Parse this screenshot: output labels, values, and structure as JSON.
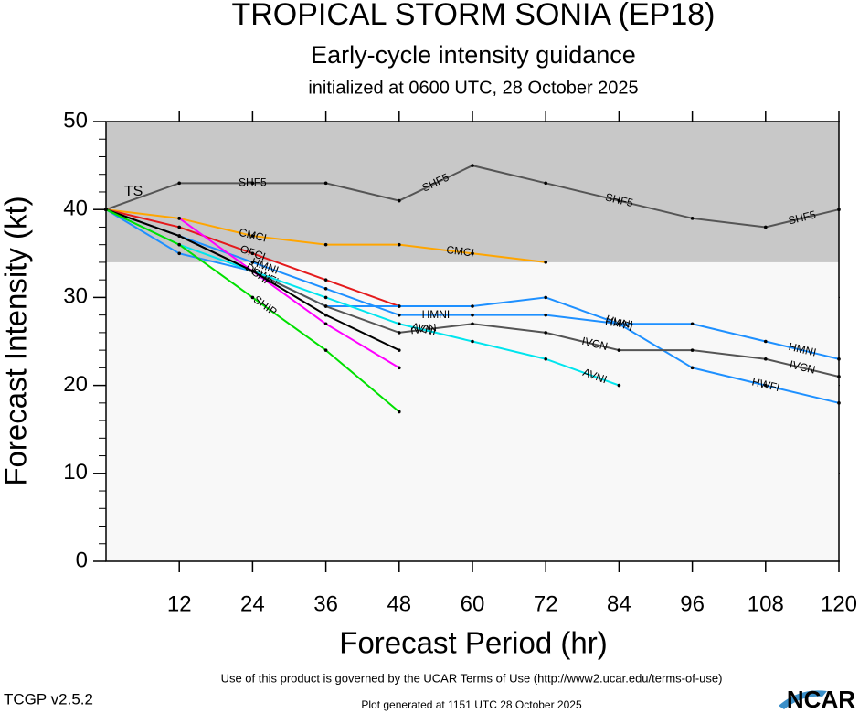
{
  "chart_data": {
    "type": "line",
    "title": "TROPICAL STORM SONIA (EP18)",
    "subtitle": "Early-cycle intensity guidance",
    "initialized": "initialized at 0600 UTC, 28 October 2025",
    "x_label": "Forecast Period (hr)",
    "y_label": "Forecast Intensity (kt)",
    "x": [
      0,
      12,
      24,
      36,
      48,
      60,
      72,
      84,
      96,
      108,
      120
    ],
    "xlim": [
      0,
      120
    ],
    "xticks": [
      12,
      24,
      36,
      48,
      60,
      72,
      84,
      96,
      108,
      120
    ],
    "ylim": [
      0,
      50
    ],
    "yticks": [
      0,
      10,
      20,
      30,
      40,
      50
    ],
    "intensity_bands": [
      {
        "label": "TS",
        "min": 34
      }
    ],
    "series": [
      {
        "name": "SHF5",
        "color": "#555555",
        "values": [
          40,
          43,
          43,
          43,
          41,
          45,
          43,
          41,
          39,
          38,
          40
        ]
      },
      {
        "name": "CMCI",
        "color": "#ffa500",
        "values": [
          40,
          39,
          37,
          36,
          36,
          35,
          34,
          null,
          null,
          null,
          null
        ]
      },
      {
        "name": "OFCI",
        "color": "#e41a1c",
        "values": [
          40,
          38,
          35,
          32,
          29,
          null,
          null,
          null,
          null,
          null,
          null
        ]
      },
      {
        "name": "HMNI",
        "color": "#1e90ff",
        "values": [
          40,
          37,
          34,
          31,
          28,
          28,
          28,
          27,
          27,
          25,
          23
        ]
      },
      {
        "name": "HWFI",
        "color": "#1e90ff",
        "values": [
          40,
          35,
          33,
          29,
          29,
          29,
          30,
          27,
          22,
          20,
          18
        ]
      },
      {
        "name": "IVCN",
        "color": "#555555",
        "values": [
          40,
          37,
          33,
          29,
          26,
          27,
          26,
          24,
          24,
          23,
          21
        ]
      },
      {
        "name": "AVNI",
        "color": "#00e5ee",
        "values": [
          40,
          36,
          33,
          30,
          27,
          25,
          23,
          20,
          null,
          null,
          null
        ]
      },
      {
        "name": "DSHP",
        "color": "#ff00ff",
        "values": [
          null,
          39,
          33,
          27,
          22,
          null,
          null,
          null,
          null,
          null,
          null
        ]
      },
      {
        "color": "#000000",
        "values": [
          40,
          37,
          33,
          28,
          24,
          null,
          null,
          null,
          null,
          null,
          null
        ]
      },
      {
        "name": "SHIP",
        "color": "#00e000",
        "values": [
          40,
          36,
          30,
          24,
          17,
          null,
          null,
          null,
          null,
          null,
          null
        ]
      }
    ],
    "terms": "Use of this product is governed by the UCAR Terms of Use (http://www2.ucar.edu/terms-of-use)",
    "version": "TCGP v2.5.2",
    "generated": "Plot generated at 1151 UTC   28 October 2025",
    "logo": "NCAR"
  }
}
